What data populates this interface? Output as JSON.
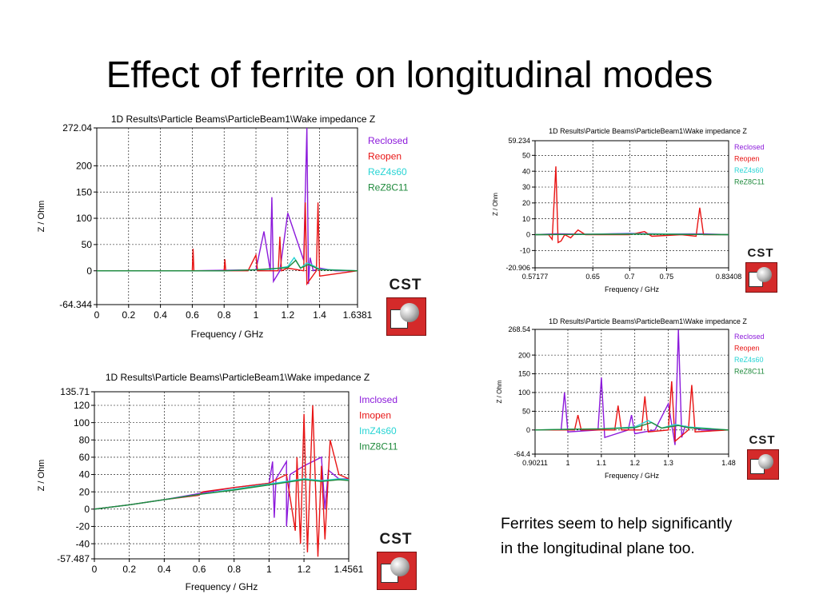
{
  "slide": {
    "title": "Effect of ferrite on longitudinal modes",
    "caption_lines": [
      "Ferrites seem to help significantly",
      "in the longitudinal plane too."
    ]
  },
  "logo": {
    "text": "CST",
    "icon": "cst-logo-icon",
    "colors": {
      "box": "#d42a2a"
    }
  },
  "chart_data": [
    {
      "type": "line",
      "title": "1D Results\\Particle Beams\\ParticleBeam1\\Wake impedance Z",
      "xlabel": "Frequency / GHz",
      "ylabel": "Z / Ohm",
      "xlim": [
        0,
        1.6381
      ],
      "ylim": [
        -64.344,
        272.04
      ],
      "xticks": [
        "0",
        "0.2",
        "0.4",
        "0.6",
        "0.8",
        "1",
        "1.2",
        "1.4",
        "1.6381"
      ],
      "yticks": [
        "272.04",
        "200",
        "150",
        "100",
        "50",
        "0",
        "-64.344"
      ],
      "ytick_values": [
        272.04,
        200,
        150,
        100,
        50,
        0,
        -64.344
      ],
      "xtick_values": [
        0,
        0.2,
        0.4,
        0.6,
        0.8,
        1,
        1.2,
        1.4,
        1.6381
      ],
      "grid": true,
      "legend_position": "top-right",
      "series": [
        {
          "name": "Reclosed",
          "color": "#8c1adb",
          "x": [
            0,
            0.6,
            1.0,
            1.05,
            1.09,
            1.1,
            1.11,
            1.15,
            1.2,
            1.3,
            1.32,
            1.33,
            1.34,
            1.36,
            1.4,
            1.5,
            1.6381
          ],
          "y": [
            0,
            0,
            2,
            75,
            0,
            140,
            -20,
            0,
            110,
            20,
            272,
            -25,
            25,
            0,
            5,
            0,
            0
          ]
        },
        {
          "name": "Reopen",
          "color": "#e81515",
          "x": [
            0,
            0.6,
            0.605,
            0.61,
            0.8,
            0.805,
            0.81,
            0.95,
            1.0,
            1.01,
            1.14,
            1.15,
            1.16,
            1.2,
            1.3,
            1.31,
            1.32,
            1.38,
            1.39,
            1.4,
            1.6381
          ],
          "y": [
            0,
            0,
            42,
            0,
            0,
            22,
            0,
            0,
            30,
            0,
            0,
            65,
            0,
            5,
            0,
            130,
            -25,
            0,
            130,
            -10,
            0
          ]
        },
        {
          "name": "ReZ4s60",
          "color": "#27d4d4",
          "x": [
            0,
            0.8,
            1.0,
            1.1,
            1.2,
            1.24,
            1.28,
            1.32,
            1.36,
            1.4,
            1.6381
          ],
          "y": [
            0,
            0,
            2,
            3,
            8,
            25,
            5,
            15,
            10,
            3,
            0
          ]
        },
        {
          "name": "ReZ8C11",
          "color": "#1f8a3c",
          "x": [
            0,
            0.8,
            1.0,
            1.1,
            1.2,
            1.25,
            1.28,
            1.33,
            1.36,
            1.4,
            1.6381
          ],
          "y": [
            0,
            0,
            2,
            4,
            6,
            20,
            5,
            12,
            8,
            2,
            0
          ]
        }
      ]
    },
    {
      "type": "line",
      "title": "1D Results\\Particle Beams\\ParticleBeam1\\Wake impedance Z",
      "xlabel": "Frequency / GHz",
      "ylabel": "Z / Ohm",
      "xlim": [
        0.57177,
        0.83408
      ],
      "ylim": [
        -20.906,
        59.234
      ],
      "xticks": [
        "0.57177",
        "0.65",
        "0.7",
        "0.75",
        "0.83408"
      ],
      "xtick_values": [
        0.57177,
        0.65,
        0.7,
        0.75,
        0.83408
      ],
      "yticks": [
        "59.234",
        "50",
        "40",
        "30",
        "20",
        "10",
        "0",
        "-10",
        "-20.906"
      ],
      "ytick_values": [
        59.234,
        50,
        40,
        30,
        20,
        10,
        0,
        -10,
        -20.906
      ],
      "grid": true,
      "legend_position": "top-right",
      "series": [
        {
          "name": "Reclosed",
          "color": "#8c1adb",
          "x": [
            0.57177,
            0.6,
            0.65,
            0.7,
            0.75,
            0.8,
            0.83408
          ],
          "y": [
            0,
            0.5,
            0.3,
            0.8,
            0.4,
            0.5,
            0
          ]
        },
        {
          "name": "Reopen",
          "color": "#e81515",
          "x": [
            0.57177,
            0.59,
            0.595,
            0.6,
            0.603,
            0.607,
            0.612,
            0.62,
            0.63,
            0.64,
            0.7,
            0.72,
            0.73,
            0.77,
            0.79,
            0.795,
            0.8,
            0.83408
          ],
          "y": [
            0,
            0,
            -3,
            43,
            -5,
            -4,
            0,
            -2,
            3,
            0,
            0,
            2,
            -1,
            0,
            -1,
            17,
            0,
            0
          ]
        },
        {
          "name": "ReZ4s60",
          "color": "#27d4d4",
          "x": [
            0.57177,
            0.65,
            0.7,
            0.75,
            0.83408
          ],
          "y": [
            0,
            0.3,
            0.5,
            0.4,
            0
          ]
        },
        {
          "name": "ReZ8C11",
          "color": "#1f8a3c",
          "x": [
            0.57177,
            0.65,
            0.7,
            0.75,
            0.83408
          ],
          "y": [
            0,
            0.2,
            0.3,
            0.2,
            0
          ]
        }
      ]
    },
    {
      "type": "line",
      "title": "1D Results\\Particle Beams\\ParticleBeam1\\Wake impedance Z",
      "xlabel": "Frequency / GHz",
      "ylabel": "Z / Ohm",
      "xlim": [
        0,
        1.4561
      ],
      "ylim": [
        -57.487,
        135.71
      ],
      "xticks": [
        "0",
        "0.2",
        "0.4",
        "0.6",
        "0.8",
        "1",
        "1.2",
        "1.4561"
      ],
      "xtick_values": [
        0,
        0.2,
        0.4,
        0.6,
        0.8,
        1,
        1.2,
        1.4561
      ],
      "yticks": [
        "135.71",
        "120",
        "100",
        "80",
        "60",
        "40",
        "20",
        "0",
        "-20",
        "-40",
        "-57.487"
      ],
      "ytick_values": [
        135.71,
        120,
        100,
        80,
        60,
        40,
        20,
        0,
        -20,
        -40,
        -57.487
      ],
      "grid": true,
      "legend_position": "top-right",
      "series": [
        {
          "name": "Imclosed",
          "color": "#8c1adb",
          "x": [
            0,
            0.2,
            0.4,
            0.6,
            0.8,
            1.0,
            1.02,
            1.03,
            1.04,
            1.1,
            1.1,
            1.12,
            1.2,
            1.3,
            1.32,
            1.34,
            1.4,
            1.4561
          ],
          "y": [
            0,
            5,
            11,
            18,
            25,
            30,
            55,
            -10,
            35,
            55,
            -20,
            40,
            50,
            60,
            0,
            45,
            35,
            35
          ]
        },
        {
          "name": "Imopen",
          "color": "#e81515",
          "x": [
            0,
            0.2,
            0.4,
            0.6,
            0.62,
            0.8,
            1.0,
            1.1,
            1.15,
            1.16,
            1.18,
            1.2,
            1.22,
            1.25,
            1.28,
            1.3,
            1.32,
            1.35,
            1.4,
            1.4561
          ],
          "y": [
            0,
            5,
            11,
            16,
            20,
            25,
            30,
            40,
            -25,
            60,
            -40,
            110,
            -50,
            120,
            -55,
            50,
            -35,
            80,
            40,
            35
          ]
        },
        {
          "name": "ImZ4s60",
          "color": "#27d4d4",
          "x": [
            0,
            0.2,
            0.4,
            0.6,
            0.8,
            1.0,
            1.1,
            1.2,
            1.3,
            1.4,
            1.4561
          ],
          "y": [
            0,
            5,
            11,
            17,
            23,
            29,
            32,
            35,
            33,
            35,
            34
          ]
        },
        {
          "name": "ImZ8C11",
          "color": "#1f8a3c",
          "x": [
            0,
            0.2,
            0.4,
            0.6,
            0.8,
            1.0,
            1.1,
            1.2,
            1.3,
            1.4,
            1.4561
          ],
          "y": [
            0,
            5,
            11,
            17,
            22,
            28,
            31,
            34,
            32,
            34,
            33
          ]
        }
      ]
    },
    {
      "type": "line",
      "title": "1D Results\\Particle Beams\\ParticleBeam1\\Wake impedance Z",
      "xlabel": "Frequency / GHz",
      "ylabel": "Z / Ohm",
      "xlim": [
        0.90211,
        1.48
      ],
      "ylim": [
        -64.4,
        268.54
      ],
      "xticks": [
        "0.90211",
        "1",
        "1.1",
        "1.2",
        "1.3",
        "1.48"
      ],
      "xtick_values": [
        0.90211,
        1,
        1.1,
        1.2,
        1.3,
        1.48
      ],
      "yticks": [
        "268.54",
        "200",
        "150",
        "100",
        "50",
        "0",
        "-64.4"
      ],
      "ytick_values": [
        268.54,
        200,
        150,
        100,
        50,
        0,
        -64.4
      ],
      "grid": true,
      "legend_position": "top-right",
      "series": [
        {
          "name": "Reclosed",
          "color": "#8c1adb",
          "x": [
            0.90211,
            0.98,
            0.99,
            1.0,
            1.09,
            1.1,
            1.11,
            1.18,
            1.19,
            1.2,
            1.26,
            1.3,
            1.32,
            1.33,
            1.34,
            1.35,
            1.4,
            1.48
          ],
          "y": [
            0,
            0,
            100,
            -5,
            0,
            140,
            -20,
            0,
            40,
            -10,
            0,
            70,
            -40,
            268,
            -20,
            10,
            0,
            0
          ]
        },
        {
          "name": "Reopen",
          "color": "#e81515",
          "x": [
            0.90211,
            1.02,
            1.03,
            1.04,
            1.14,
            1.15,
            1.16,
            1.22,
            1.23,
            1.24,
            1.3,
            1.31,
            1.32,
            1.36,
            1.37,
            1.38,
            1.48
          ],
          "y": [
            0,
            0,
            40,
            0,
            0,
            65,
            0,
            0,
            90,
            -5,
            0,
            130,
            -30,
            0,
            120,
            -5,
            0
          ]
        },
        {
          "name": "ReZ4s60",
          "color": "#27d4d4",
          "x": [
            0.90211,
            1.0,
            1.1,
            1.2,
            1.24,
            1.28,
            1.32,
            1.36,
            1.48
          ],
          "y": [
            0,
            2,
            3,
            8,
            25,
            5,
            15,
            8,
            0
          ]
        },
        {
          "name": "ReZ8C11",
          "color": "#1f8a3c",
          "x": [
            0.90211,
            1.0,
            1.1,
            1.2,
            1.25,
            1.28,
            1.33,
            1.36,
            1.48
          ],
          "y": [
            0,
            2,
            3,
            6,
            20,
            5,
            12,
            6,
            0
          ]
        }
      ]
    }
  ]
}
